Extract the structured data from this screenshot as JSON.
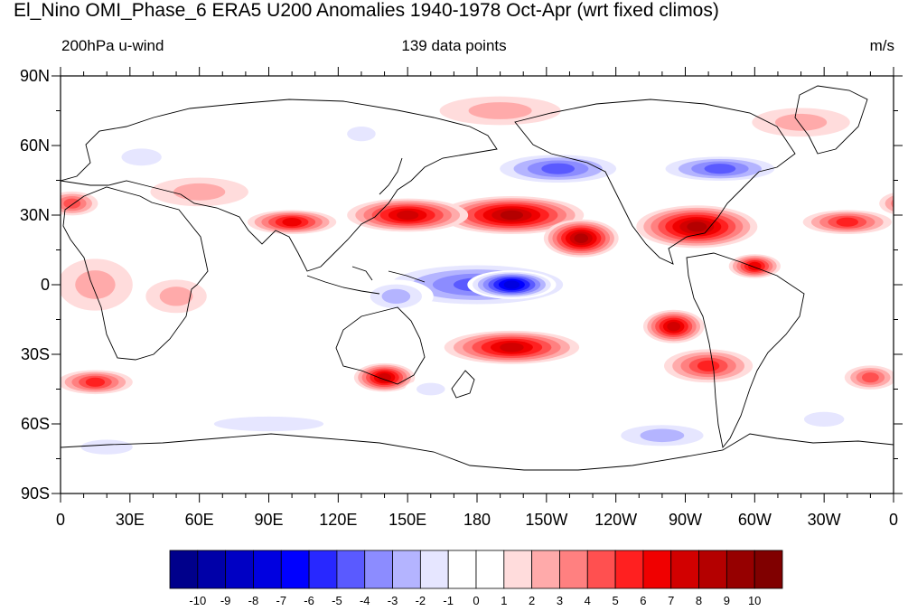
{
  "title": "El_Nino OMI_Phase_6 ERA5 U200 Anomalies 1940-1978 Oct-Apr (wrt fixed climos)",
  "left_label": "200hPa u-wind",
  "center_label": "139 data points",
  "right_label": "m/s",
  "lat_ticks": [
    {
      "label": "90N",
      "lat": 90
    },
    {
      "label": "60N",
      "lat": 60
    },
    {
      "label": "30N",
      "lat": 30
    },
    {
      "label": "0",
      "lat": 0
    },
    {
      "label": "30S",
      "lat": -30
    },
    {
      "label": "60S",
      "lat": -60
    },
    {
      "label": "90S",
      "lat": -90
    }
  ],
  "lon_ticks": [
    {
      "label": "0",
      "lon": 0
    },
    {
      "label": "30E",
      "lon": 30
    },
    {
      "label": "60E",
      "lon": 60
    },
    {
      "label": "90E",
      "lon": 90
    },
    {
      "label": "120E",
      "lon": 120
    },
    {
      "label": "150E",
      "lon": 150
    },
    {
      "label": "180",
      "lon": 180
    },
    {
      "label": "150W",
      "lon": 210
    },
    {
      "label": "120W",
      "lon": 240
    },
    {
      "label": "90W",
      "lon": 270
    },
    {
      "label": "60W",
      "lon": 300
    },
    {
      "label": "30W",
      "lon": 330
    },
    {
      "label": "0",
      "lon": 360
    }
  ],
  "colorbar": {
    "levels": [
      "-10",
      "-9",
      "-8",
      "-7",
      "-6",
      "-5",
      "-4",
      "-3",
      "-2",
      "-1",
      "0",
      "1",
      "2",
      "3",
      "4",
      "5",
      "6",
      "7",
      "8",
      "9",
      "10"
    ],
    "colors": [
      "#00008b",
      "#0000a8",
      "#0000c4",
      "#0000e0",
      "#0000ff",
      "#2828ff",
      "#5a5aff",
      "#8c8cff",
      "#b4b4ff",
      "#e6e6ff",
      "#ffffff",
      "#ffffff",
      "#ffdcdc",
      "#ffaaaa",
      "#ff8080",
      "#ff5050",
      "#ff2020",
      "#f00000",
      "#d20000",
      "#b40000",
      "#960000",
      "#800000"
    ]
  },
  "anomalies": [
    {
      "lon": 195,
      "lat": 30,
      "rlon": 30,
      "rlat": 7,
      "value": 8
    },
    {
      "lon": 150,
      "lat": 30,
      "rlon": 25,
      "rlat": 6,
      "value": 7
    },
    {
      "lon": 100,
      "lat": 27,
      "rlon": 18,
      "rlat": 4,
      "value": 6
    },
    {
      "lon": 225,
      "lat": 20,
      "rlon": 15,
      "rlat": 7,
      "value": 8
    },
    {
      "lon": 275,
      "lat": 25,
      "rlon": 25,
      "rlat": 8,
      "value": 8
    },
    {
      "lon": 300,
      "lat": 8,
      "rlon": 10,
      "rlat": 4,
      "value": 6
    },
    {
      "lon": 340,
      "lat": 27,
      "rlon": 18,
      "rlat": 4,
      "value": 5
    },
    {
      "lon": 15,
      "lat": 0,
      "rlon": 15,
      "rlat": 10,
      "value": 2
    },
    {
      "lon": 50,
      "lat": -5,
      "rlon": 12,
      "rlat": 6,
      "value": 2
    },
    {
      "lon": 180,
      "lat": 0,
      "rlon": 45,
      "rlat": 9,
      "value": -5
    },
    {
      "lon": 195,
      "lat": 0,
      "rlon": 18,
      "rlat": 5,
      "value": -8
    },
    {
      "lon": 145,
      "lat": -5,
      "rlon": 15,
      "rlat": 6,
      "value": -3
    },
    {
      "lon": 215,
      "lat": 50,
      "rlon": 30,
      "rlat": 6,
      "value": -5
    },
    {
      "lon": 285,
      "lat": 50,
      "rlon": 28,
      "rlat": 5,
      "value": -5
    },
    {
      "lon": 195,
      "lat": -27,
      "rlon": 28,
      "rlat": 6,
      "value": 7
    },
    {
      "lon": 265,
      "lat": -18,
      "rlon": 12,
      "rlat": 6,
      "value": 7
    },
    {
      "lon": 280,
      "lat": -35,
      "rlon": 18,
      "rlat": 6,
      "value": 5
    },
    {
      "lon": 140,
      "lat": -40,
      "rlon": 12,
      "rlat": 5,
      "value": 7
    },
    {
      "lon": 15,
      "lat": -42,
      "rlon": 15,
      "rlat": 4,
      "value": 5
    },
    {
      "lon": 350,
      "lat": -40,
      "rlon": 10,
      "rlat": 4,
      "value": 4
    },
    {
      "lon": 190,
      "lat": 75,
      "rlon": 25,
      "rlat": 5,
      "value": 2
    },
    {
      "lon": 320,
      "lat": 70,
      "rlon": 20,
      "rlat": 5,
      "value": 2
    },
    {
      "lon": 35,
      "lat": 55,
      "rlon": 15,
      "rlat": 5,
      "value": -2
    },
    {
      "lon": 130,
      "lat": 65,
      "rlon": 10,
      "rlat": 4,
      "value": -2
    },
    {
      "lon": 90,
      "lat": -60,
      "rlon": 45,
      "rlat": 4,
      "value": -2
    },
    {
      "lon": 260,
      "lat": -65,
      "rlon": 25,
      "rlat": 5,
      "value": -3
    },
    {
      "lon": 330,
      "lat": -58,
      "rlon": 15,
      "rlat": 4,
      "value": -2
    },
    {
      "lon": 20,
      "lat": -70,
      "rlon": 20,
      "rlat": 4,
      "value": -2
    },
    {
      "lon": 160,
      "lat": -45,
      "rlon": 10,
      "rlat": 3,
      "value": -2
    },
    {
      "lon": 60,
      "lat": 40,
      "rlon": 20,
      "rlat": 5,
      "value": 2
    },
    {
      "lon": 5,
      "lat": 35,
      "rlon": 10,
      "rlat": 4,
      "value": 4
    }
  ]
}
